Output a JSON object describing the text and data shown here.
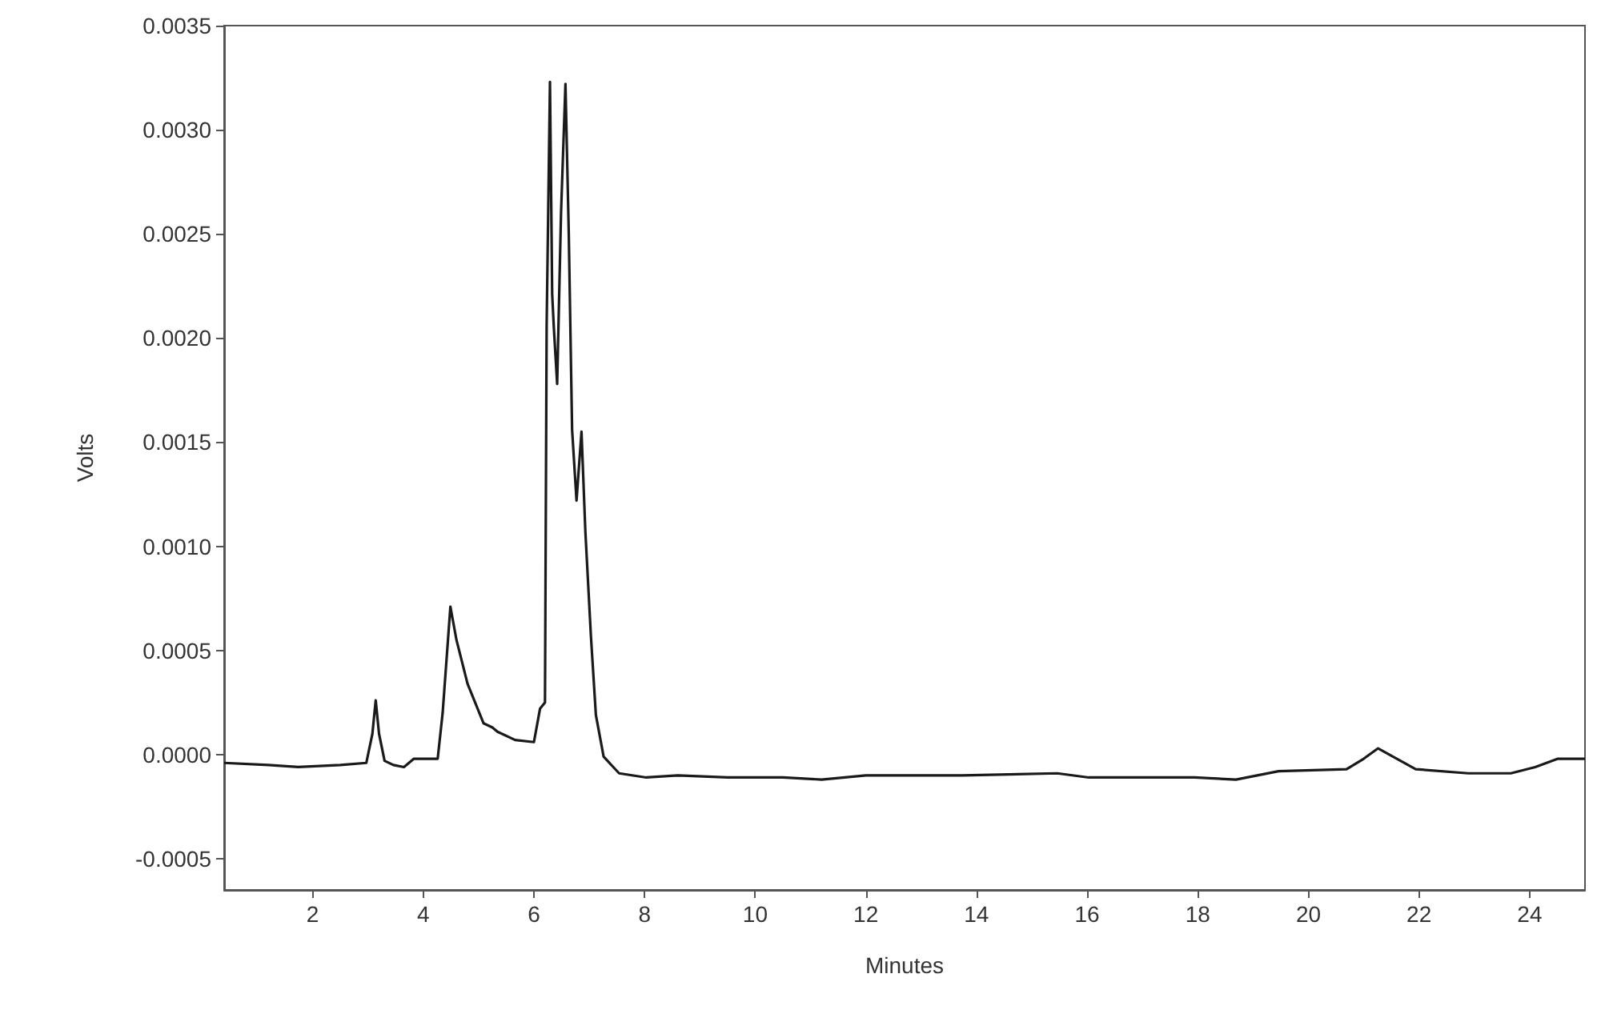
{
  "chart_data": {
    "type": "line",
    "xlabel": "Minutes",
    "ylabel": "Volts",
    "xlim": [
      0.4,
      25
    ],
    "ylim": [
      -0.00065,
      0.0035
    ],
    "xticks": [
      2,
      4,
      6,
      8,
      10,
      12,
      14,
      16,
      18,
      20,
      22,
      24
    ],
    "yticks": [
      {
        "value": -0.0005,
        "label": "-0.0005"
      },
      {
        "value": 0,
        "label": "0.0000"
      },
      {
        "value": 0.0005,
        "label": "0.0005"
      },
      {
        "value": 0.001,
        "label": "0.0010"
      },
      {
        "value": 0.0015,
        "label": "0.0015"
      },
      {
        "value": 0.002,
        "label": "0.0020"
      },
      {
        "value": 0.0025,
        "label": "0.0025"
      },
      {
        "value": 0.003,
        "label": "0.0030"
      },
      {
        "value": 0.0035,
        "label": "0.0035"
      }
    ],
    "grid": false,
    "marker": "none",
    "line_style": "solid",
    "series": [
      {
        "color": "#1a1a1a",
        "x": [
          0.4,
          1.2,
          1.74,
          2.5,
          2.97,
          3.08,
          3.14,
          3.2,
          3.3,
          3.46,
          3.65,
          3.74,
          3.83,
          4.26,
          4.35,
          4.49,
          4.6,
          4.8,
          5.09,
          5.25,
          5.34,
          5.66,
          6.0,
          6.11,
          6.2,
          6.23,
          6.29,
          6.33,
          6.36,
          6.42,
          6.49,
          6.57,
          6.63,
          6.69,
          6.77,
          6.86,
          6.93,
          7.03,
          7.12,
          7.26,
          7.54,
          8.03,
          8.6,
          9.5,
          10.5,
          11.2,
          12.0,
          12.8,
          13.74,
          15.46,
          16.03,
          17.94,
          18.69,
          19.46,
          20.69,
          21.0,
          21.26,
          21.6,
          21.94,
          22.89,
          23.66,
          24.1,
          24.51,
          25.0
        ],
        "values": [
          -4e-05,
          -5e-05,
          -6e-05,
          -5e-05,
          -4e-05,
          0.0001,
          0.00026,
          0.0001,
          -3e-05,
          -5e-05,
          -6e-05,
          -4e-05,
          -2e-05,
          -2e-05,
          0.0002,
          0.00071,
          0.00055,
          0.00034,
          0.00015,
          0.00013,
          0.00011,
          7e-05,
          6e-05,
          0.00022,
          0.00025,
          0.00206,
          0.00323,
          0.00221,
          0.00205,
          0.00178,
          0.0026,
          0.00322,
          0.0025,
          0.00156,
          0.00122,
          0.00155,
          0.00107,
          0.00057,
          0.00019,
          -1e-05,
          -9e-05,
          -0.00011,
          -0.0001,
          -0.00011,
          -0.00011,
          -0.00012,
          -0.0001,
          -0.0001,
          -0.0001,
          -9e-05,
          -0.00011,
          -0.00011,
          -0.00012,
          -8e-05,
          -7e-05,
          -2e-05,
          3e-05,
          -2e-05,
          -7e-05,
          -9e-05,
          -9e-05,
          -6e-05,
          -2e-05,
          -2e-05
        ]
      }
    ]
  }
}
